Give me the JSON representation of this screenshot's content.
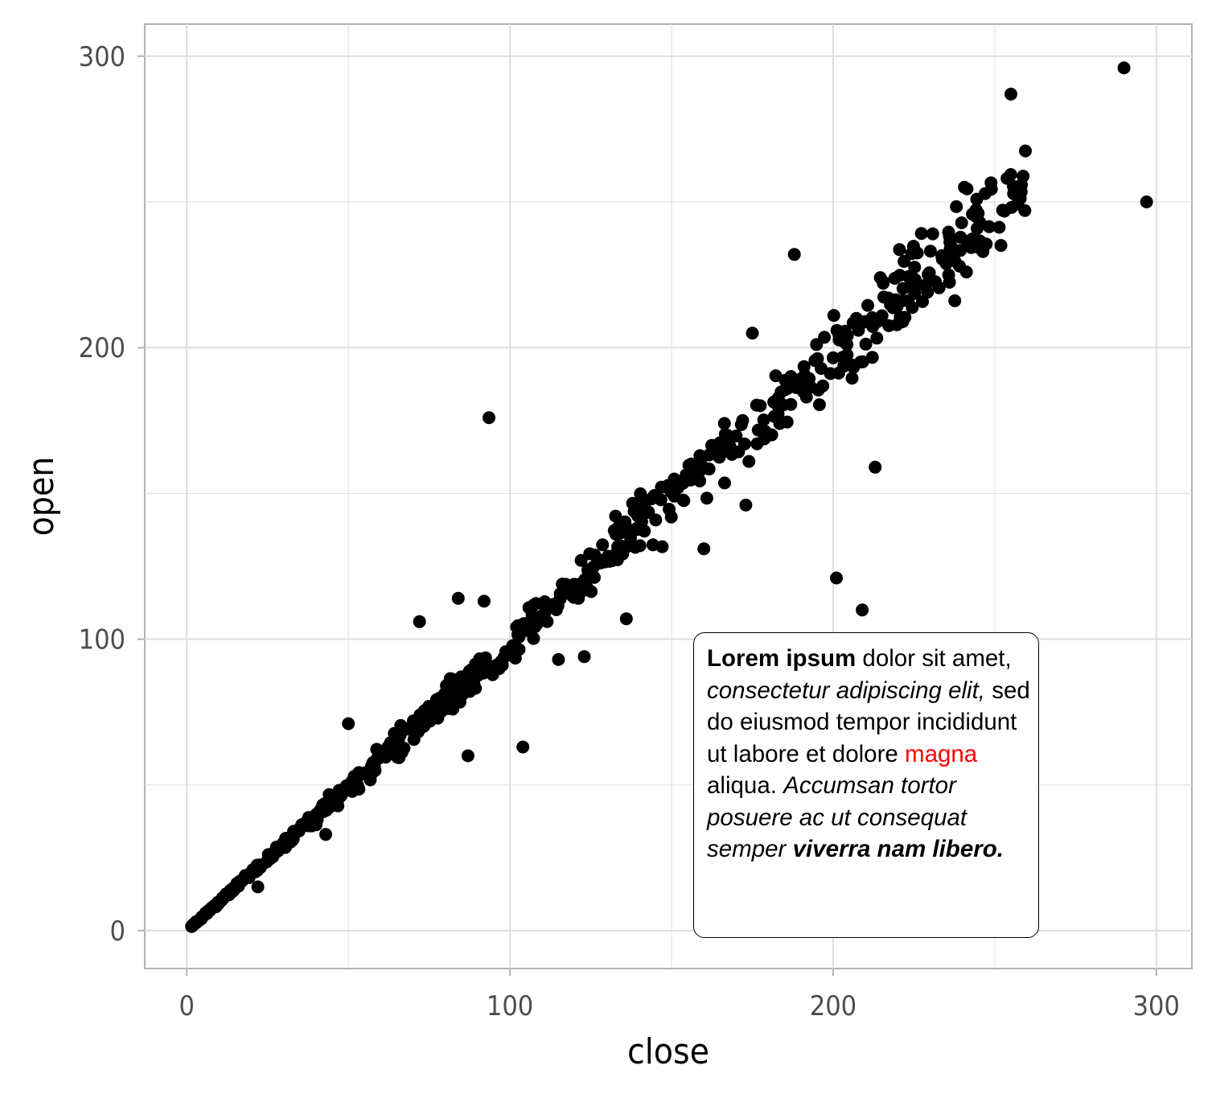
{
  "chart_data": {
    "type": "scatter",
    "xlabel": "close",
    "ylabel": "open",
    "xlim": [
      -13,
      311
    ],
    "ylim": [
      -13,
      311
    ],
    "x_ticks": [
      "0",
      "100",
      "200",
      "300"
    ],
    "y_ticks": [
      "0",
      "100",
      "200",
      "300"
    ],
    "grid": true,
    "point_color": "#000000",
    "panel_border_color": "#b3b3b3",
    "grid_color": "#dedede",
    "outliers": [
      {
        "x": 93.5,
        "y": 176
      },
      {
        "x": 290,
        "y": 296
      },
      {
        "x": 255,
        "y": 287
      },
      {
        "x": 297,
        "y": 250
      },
      {
        "x": 188,
        "y": 232
      },
      {
        "x": 175,
        "y": 205
      },
      {
        "x": 213,
        "y": 159
      },
      {
        "x": 201,
        "y": 121
      },
      {
        "x": 209,
        "y": 110
      },
      {
        "x": 160,
        "y": 131
      },
      {
        "x": 173,
        "y": 146
      },
      {
        "x": 104,
        "y": 63
      },
      {
        "x": 87,
        "y": 60
      },
      {
        "x": 123,
        "y": 94
      },
      {
        "x": 136,
        "y": 107
      },
      {
        "x": 115,
        "y": 93
      },
      {
        "x": 84,
        "y": 114
      },
      {
        "x": 92,
        "y": 113
      },
      {
        "x": 72,
        "y": 106
      },
      {
        "x": 50,
        "y": 71
      },
      {
        "x": 43,
        "y": 33
      },
      {
        "x": 22,
        "y": 15
      }
    ],
    "bulk": {
      "n": 640,
      "x_range": [
        1.5,
        260
      ],
      "slope": 0.985,
      "noise_sd_fraction": 0.04
    }
  },
  "annotation": {
    "border_color": "#000000",
    "highlight_color": "#ff0000",
    "segments": [
      {
        "text": "Lorem ipsum",
        "style": "b"
      },
      {
        "text": " dolor sit amet, ",
        "style": ""
      },
      {
        "text": "consectetur adipiscing elit,",
        "style": "i"
      },
      {
        "text": " sed do eiusmod tempor incididunt ut labore et dolore ",
        "style": ""
      },
      {
        "text": "magna",
        "style": "red"
      },
      {
        "text": " aliqua. ",
        "style": ""
      },
      {
        "text": "Accumsan tortor posuere ac ut consequat semper ",
        "style": "i"
      },
      {
        "text": " viverra nam libero.",
        "style": "bi"
      }
    ]
  }
}
